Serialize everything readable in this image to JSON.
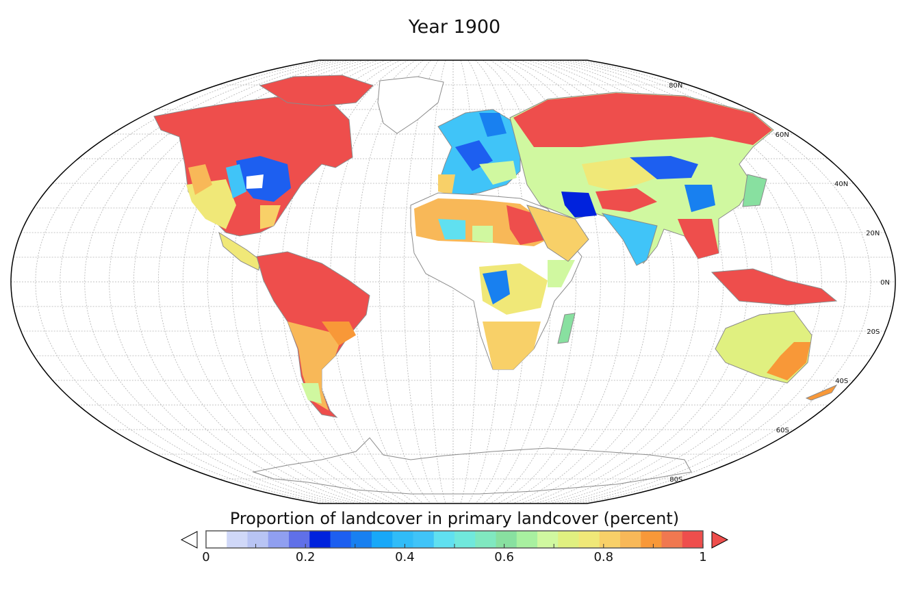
{
  "title": "Year 1900",
  "map": {
    "projection": "elliptical (Hammer-like)",
    "latitude_labels": [
      "80N",
      "60N",
      "40N",
      "20N",
      "0N",
      "20S",
      "40S",
      "60S",
      "80S"
    ],
    "latitude_values": [
      80,
      60,
      40,
      20,
      0,
      -20,
      -40,
      -60,
      -80
    ],
    "grid": true,
    "ocean_color": "#ffffff",
    "coastline_color": "#8a8a8a"
  },
  "colorbar": {
    "label": "Proportion of landcover in primary landcover (percent)",
    "min": 0,
    "max": 1,
    "ticks": [
      "0",
      "0.2",
      "0.4",
      "0.6",
      "0.8",
      "1"
    ],
    "tick_values": [
      0,
      0.2,
      0.4,
      0.6,
      0.8,
      1
    ],
    "extend_low_color": "#ffffff",
    "extend_high_color": "#ee4e4c",
    "colors": [
      "#ffffff",
      "#d0d8f8",
      "#b8c4f4",
      "#909ff0",
      "#6070e8",
      "#0022dd",
      "#1d5ff0",
      "#1880f0",
      "#18a8f8",
      "#30bcf8",
      "#40c4f8",
      "#60e0f0",
      "#70e8dc",
      "#80e8c0",
      "#88e0a0",
      "#a8f0a0",
      "#d0f8a0",
      "#e0f080",
      "#f0e878",
      "#f8d068",
      "#f8b858",
      "#f89838",
      "#f07850",
      "#ee4e4c"
    ]
  }
}
